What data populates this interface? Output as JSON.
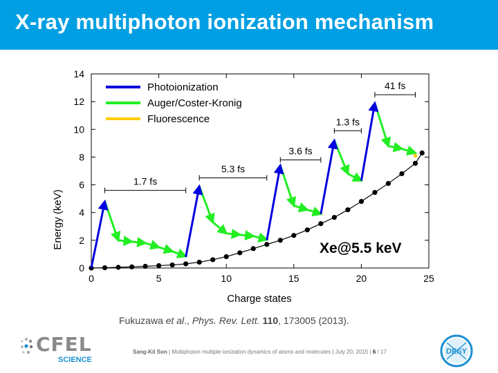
{
  "header": {
    "title": "X-ray multiphoton ionization mechanism"
  },
  "chart_data": {
    "type": "line",
    "xlabel": "Charge states",
    "ylabel": "Energy (keV)",
    "xlim": [
      0,
      25
    ],
    "ylim": [
      0,
      14
    ],
    "xticks": [
      0,
      5,
      10,
      15,
      20,
      25
    ],
    "yticks": [
      0,
      2,
      4,
      6,
      8,
      10,
      12,
      14
    ],
    "grid": false,
    "legend_position": "top-left",
    "legend": [
      {
        "label": "Photoionization",
        "color": "#0000e0"
      },
      {
        "label": "Auger/Coster-Kronig",
        "color": "#22ee22"
      },
      {
        "label": "Fluorescence",
        "color": "#ffcc00"
      }
    ],
    "baseline_curve": [
      [
        0,
        0.0
      ],
      [
        1,
        0.02
      ],
      [
        2,
        0.05
      ],
      [
        3,
        0.08
      ],
      [
        4,
        0.12
      ],
      [
        5,
        0.17
      ],
      [
        6,
        0.22
      ],
      [
        7,
        0.3
      ],
      [
        8,
        0.42
      ],
      [
        9,
        0.6
      ],
      [
        10,
        0.82
      ],
      [
        11,
        1.1
      ],
      [
        12,
        1.4
      ],
      [
        13,
        1.7
      ],
      [
        14,
        2.0
      ],
      [
        15,
        2.35
      ],
      [
        16,
        2.75
      ],
      [
        17,
        3.2
      ],
      [
        18,
        3.65
      ],
      [
        19,
        4.2
      ],
      [
        20,
        4.8
      ],
      [
        21,
        5.45
      ],
      [
        22,
        6.1
      ],
      [
        23,
        6.8
      ],
      [
        24,
        7.55
      ],
      [
        24.5,
        8.3
      ]
    ],
    "photoionization_arrows": [
      {
        "from": [
          0,
          0.0
        ],
        "to": [
          1,
          4.8
        ]
      },
      {
        "from": [
          7,
          0.8
        ],
        "to": [
          8,
          5.9
        ]
      },
      {
        "from": [
          13,
          2.0
        ],
        "to": [
          14,
          7.4
        ]
      },
      {
        "from": [
          17,
          3.9
        ],
        "to": [
          18,
          9.2
        ]
      },
      {
        "from": [
          20,
          6.3
        ],
        "to": [
          21,
          11.9
        ]
      }
    ],
    "auger_paths": [
      [
        [
          1,
          4.8
        ],
        [
          2,
          2.0
        ],
        [
          3,
          1.9
        ],
        [
          4,
          1.8
        ],
        [
          5,
          1.5
        ],
        [
          6,
          1.2
        ],
        [
          7,
          0.85
        ]
      ],
      [
        [
          8,
          5.9
        ],
        [
          9,
          3.3
        ],
        [
          10,
          2.5
        ],
        [
          11,
          2.4
        ],
        [
          12,
          2.3
        ],
        [
          13,
          2.05
        ]
      ],
      [
        [
          14,
          7.4
        ],
        [
          15,
          4.5
        ],
        [
          16,
          4.2
        ],
        [
          17,
          3.9
        ]
      ],
      [
        [
          18,
          9.2
        ],
        [
          19,
          6.8
        ],
        [
          20,
          6.3
        ]
      ],
      [
        [
          21,
          11.9
        ],
        [
          22,
          8.8
        ],
        [
          23,
          8.6
        ],
        [
          24,
          8.3
        ]
      ]
    ],
    "fluorescence_points": [
      [
        24,
        8.1
      ]
    ],
    "time_annotations": [
      {
        "label": "1.7 fs",
        "x1": 1,
        "x2": 7,
        "y": 5.6
      },
      {
        "label": "5.3 fs",
        "x1": 8,
        "x2": 13,
        "y": 6.5
      },
      {
        "label": "3.6 fs",
        "x1": 14,
        "x2": 17,
        "y": 7.8
      },
      {
        "label": "1.3 fs",
        "x1": 18,
        "x2": 20,
        "y": 9.9
      },
      {
        "label": "41 fs",
        "x1": 21,
        "x2": 24,
        "y": 12.5
      }
    ],
    "annotation": "Xe@5.5 keV"
  },
  "citation": {
    "authors": "Fukuzawa",
    "etal": "et al",
    "sep": ".,",
    "journal": "Phys. Rev. Lett.",
    "volume": "110",
    "rest": ", 173005 (2013)."
  },
  "footer": {
    "author": "Sang-Kil Son",
    "sep1": " | ",
    "talk_title": "Multiphoton multiple ionization dynamics of atoms and molecules",
    "sep2": " | ",
    "date": "July 20, 2015",
    "sep3": " | ",
    "page": "6",
    "total": " / 17"
  },
  "logos": {
    "cfel_word": "CFEL",
    "cfel_sub": "SCIENCE",
    "desy_word": "DESY"
  }
}
